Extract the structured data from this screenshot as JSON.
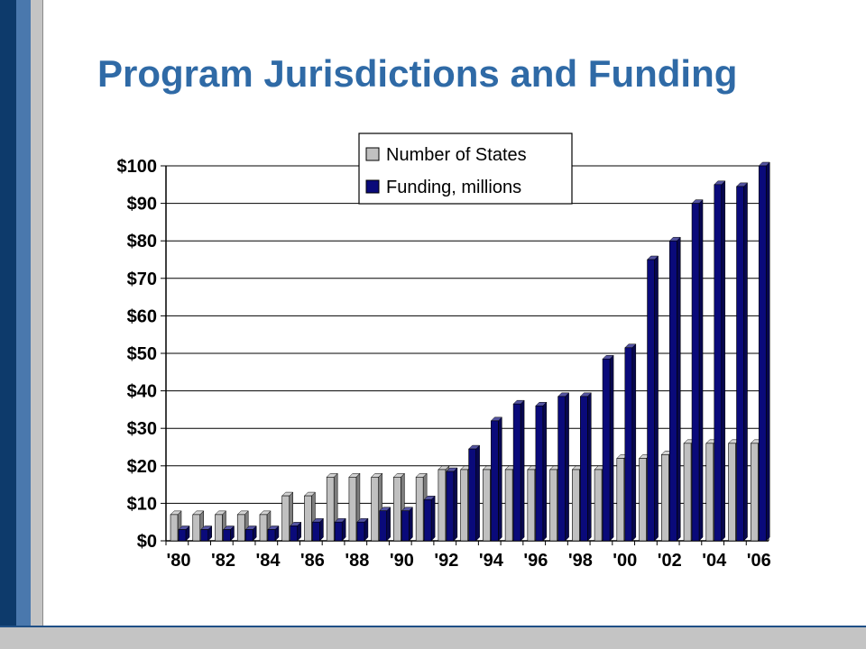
{
  "slide": {
    "title": "Program Jurisdictions and Funding"
  },
  "colors": {
    "states_series": "#c0c0c0",
    "funding_series": "#0a0a7a",
    "title": "#2f6aa6",
    "gridline": "#000000"
  },
  "chart_data": {
    "type": "bar",
    "bar_style": "3d-clustered",
    "categories": [
      "'80",
      "'81",
      "'82",
      "'83",
      "'84",
      "'85",
      "'86",
      "'87",
      "'88",
      "'89",
      "'90",
      "'91",
      "'92",
      "'93",
      "'94",
      "'95",
      "'96",
      "'97",
      "'98",
      "'99",
      "'00",
      "'01",
      "'02",
      "'03",
      "'04",
      "'05",
      "'06"
    ],
    "category_labels": [
      "'80",
      "",
      "'82",
      "",
      "'84",
      "",
      "'86",
      "",
      "'88",
      "",
      "'90",
      "",
      "'92",
      "",
      "'94",
      "",
      "'96",
      "",
      "'98",
      "",
      "'00",
      "",
      "'02",
      "",
      "'04",
      "",
      "'06"
    ],
    "series": [
      {
        "name": "Number of States",
        "color": "#c0c0c0",
        "values": [
          7,
          7,
          7,
          7,
          7,
          12,
          12,
          17,
          17,
          17,
          17,
          17,
          19,
          19,
          19,
          19,
          19,
          19,
          19,
          19,
          22,
          22,
          23,
          26,
          26,
          26,
          26
        ]
      },
      {
        "name": "Funding, millions",
        "color": "#0a0a7a",
        "values": [
          3,
          3,
          3,
          3,
          3,
          4,
          5,
          5,
          5,
          8,
          8,
          11,
          18.5,
          24.5,
          32,
          36.5,
          36,
          38.5,
          38.5,
          48.5,
          51.5,
          75,
          80,
          90,
          95,
          94.5,
          100
        ]
      }
    ],
    "ylim": [
      0,
      100
    ],
    "yticks": [
      0,
      10,
      20,
      30,
      40,
      50,
      60,
      70,
      80,
      90,
      100
    ],
    "ytick_labels": [
      "$0",
      "$10",
      "$20",
      "$30",
      "$40",
      "$50",
      "$60",
      "$70",
      "$80",
      "$90",
      "$100"
    ],
    "grid": true,
    "legend_position": "top-center"
  }
}
